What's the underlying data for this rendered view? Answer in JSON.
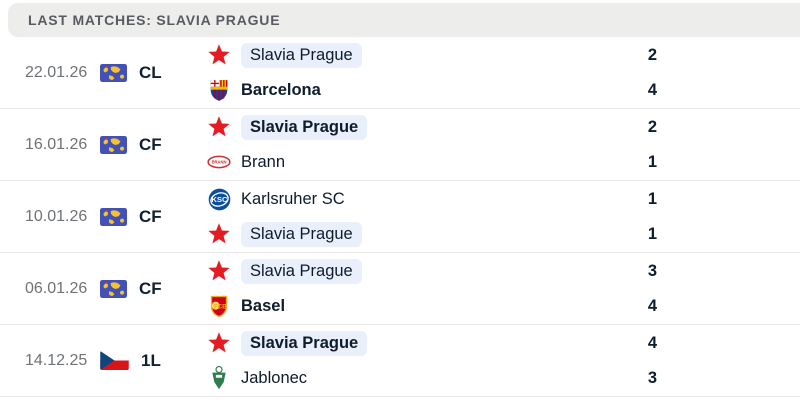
{
  "header": {
    "title": "LAST MATCHES: SLAVIA PRAGUE"
  },
  "colors": {
    "header_bg": "#ededeb",
    "header_fg": "#585c62",
    "highlight_pill": "#e9effb",
    "slavia_red": "#e31b23",
    "divider": "#e8e8e6",
    "score_fg": "#0e1c2c",
    "date_fg": "#6f7276"
  },
  "matches": [
    {
      "date": "22.01.26",
      "competition": {
        "code": "CL",
        "flag": "world-map"
      },
      "teams": [
        {
          "name": "Slavia Prague",
          "score": "2",
          "logo": "slavia-prague",
          "bold": false,
          "highlighted": true
        },
        {
          "name": "Barcelona",
          "score": "4",
          "logo": "barcelona",
          "bold": true,
          "highlighted": false
        }
      ]
    },
    {
      "date": "16.01.26",
      "competition": {
        "code": "CF",
        "flag": "world-map"
      },
      "teams": [
        {
          "name": "Slavia Prague",
          "score": "2",
          "logo": "slavia-prague",
          "bold": true,
          "highlighted": true
        },
        {
          "name": "Brann",
          "score": "1",
          "logo": "brann",
          "bold": false,
          "highlighted": false
        }
      ]
    },
    {
      "date": "10.01.26",
      "competition": {
        "code": "CF",
        "flag": "world-map"
      },
      "teams": [
        {
          "name": "Karlsruher SC",
          "score": "1",
          "logo": "karlsruher-sc",
          "bold": false,
          "highlighted": false
        },
        {
          "name": "Slavia Prague",
          "score": "1",
          "logo": "slavia-prague",
          "bold": false,
          "highlighted": true
        }
      ]
    },
    {
      "date": "06.01.26",
      "competition": {
        "code": "CF",
        "flag": "world-map"
      },
      "teams": [
        {
          "name": "Slavia Prague",
          "score": "3",
          "logo": "slavia-prague",
          "bold": false,
          "highlighted": true
        },
        {
          "name": "Basel",
          "score": "4",
          "logo": "basel",
          "bold": true,
          "highlighted": false
        }
      ]
    },
    {
      "date": "14.12.25",
      "competition": {
        "code": "1L",
        "flag": "czech-flag"
      },
      "teams": [
        {
          "name": "Slavia Prague",
          "score": "4",
          "logo": "slavia-prague",
          "bold": true,
          "highlighted": true
        },
        {
          "name": "Jablonec",
          "score": "3",
          "logo": "jablonec",
          "bold": false,
          "highlighted": false
        }
      ]
    }
  ]
}
